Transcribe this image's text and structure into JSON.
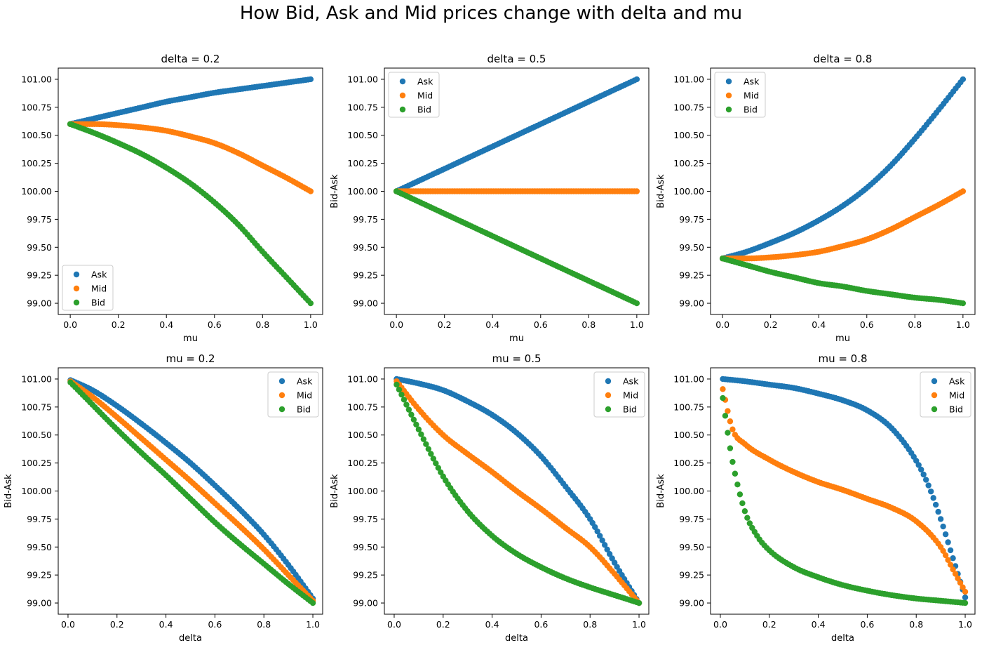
{
  "figure": {
    "title": "How Bid, Ask and Mid prices change with delta and mu",
    "colors": {
      "Ask": "#1f77b4",
      "Mid": "#ff7f0e",
      "Bid": "#2ca02c"
    }
  },
  "chart_data": [
    {
      "type": "scatter",
      "title": "delta = 0.2",
      "xlabel": "mu",
      "ylabel": "",
      "xlim": [
        -0.05,
        1.05
      ],
      "ylim": [
        98.9,
        101.1
      ],
      "xticks": [
        0.0,
        0.2,
        0.4,
        0.6,
        0.8,
        1.0
      ],
      "xtick_labels": [
        "0.0",
        "0.2",
        "0.4",
        "0.6",
        "0.8",
        "1.0"
      ],
      "yticks": [
        99.0,
        99.25,
        99.5,
        99.75,
        100.0,
        100.25,
        100.5,
        100.75,
        101.0
      ],
      "ytick_labels": [
        "99.00",
        "99.25",
        "99.50",
        "99.75",
        "100.00",
        "100.25",
        "100.50",
        "100.75",
        "101.00"
      ],
      "legend": "lower-left",
      "grid": false,
      "series": [
        {
          "name": "Ask",
          "x": [
            0.0,
            0.1,
            0.2,
            0.3,
            0.4,
            0.5,
            0.6,
            0.7,
            0.8,
            0.9,
            1.0
          ],
          "y": [
            100.6,
            100.65,
            100.7,
            100.75,
            100.8,
            100.84,
            100.88,
            100.91,
            100.94,
            100.97,
            101.0
          ]
        },
        {
          "name": "Mid",
          "x": [
            0.0,
            0.1,
            0.2,
            0.3,
            0.4,
            0.5,
            0.6,
            0.7,
            0.8,
            0.9,
            1.0
          ],
          "y": [
            100.6,
            100.6,
            100.59,
            100.57,
            100.54,
            100.49,
            100.43,
            100.34,
            100.23,
            100.12,
            100.0
          ]
        },
        {
          "name": "Bid",
          "x": [
            0.0,
            0.1,
            0.2,
            0.3,
            0.4,
            0.5,
            0.6,
            0.7,
            0.8,
            0.9,
            1.0
          ],
          "y": [
            100.6,
            100.52,
            100.43,
            100.33,
            100.21,
            100.07,
            99.9,
            99.7,
            99.46,
            99.23,
            99.0
          ]
        }
      ]
    },
    {
      "type": "scatter",
      "title": "delta = 0.5",
      "xlabel": "mu",
      "ylabel": "Bid-Ask",
      "xlim": [
        -0.05,
        1.05
      ],
      "ylim": [
        98.9,
        101.1
      ],
      "xticks": [
        0.0,
        0.2,
        0.4,
        0.6,
        0.8,
        1.0
      ],
      "xtick_labels": [
        "0.0",
        "0.2",
        "0.4",
        "0.6",
        "0.8",
        "1.0"
      ],
      "yticks": [
        99.0,
        99.25,
        99.5,
        99.75,
        100.0,
        100.25,
        100.5,
        100.75,
        101.0
      ],
      "ytick_labels": [
        "99.00",
        "99.25",
        "99.50",
        "99.75",
        "100.00",
        "100.25",
        "100.50",
        "100.75",
        "101.00"
      ],
      "legend": "upper-left",
      "grid": false,
      "series": [
        {
          "name": "Ask",
          "x": [
            0.0,
            0.1,
            0.2,
            0.3,
            0.4,
            0.5,
            0.6,
            0.7,
            0.8,
            0.9,
            1.0
          ],
          "y": [
            100.0,
            100.1,
            100.2,
            100.3,
            100.4,
            100.5,
            100.6,
            100.7,
            100.8,
            100.9,
            101.0
          ]
        },
        {
          "name": "Mid",
          "x": [
            0.0,
            0.1,
            0.2,
            0.3,
            0.4,
            0.5,
            0.6,
            0.7,
            0.8,
            0.9,
            1.0
          ],
          "y": [
            100.0,
            100.0,
            100.0,
            100.0,
            100.0,
            100.0,
            100.0,
            100.0,
            100.0,
            100.0,
            100.0
          ]
        },
        {
          "name": "Bid",
          "x": [
            0.0,
            0.1,
            0.2,
            0.3,
            0.4,
            0.5,
            0.6,
            0.7,
            0.8,
            0.9,
            1.0
          ],
          "y": [
            100.0,
            99.9,
            99.8,
            99.7,
            99.6,
            99.5,
            99.4,
            99.3,
            99.2,
            99.1,
            99.0
          ]
        }
      ]
    },
    {
      "type": "scatter",
      "title": "delta = 0.8",
      "xlabel": "mu",
      "ylabel": "Bid-Ask",
      "xlim": [
        -0.05,
        1.05
      ],
      "ylim": [
        98.9,
        101.1
      ],
      "xticks": [
        0.0,
        0.2,
        0.4,
        0.6,
        0.8,
        1.0
      ],
      "xtick_labels": [
        "0.0",
        "0.2",
        "0.4",
        "0.6",
        "0.8",
        "1.0"
      ],
      "yticks": [
        99.0,
        99.25,
        99.5,
        99.75,
        100.0,
        100.25,
        100.5,
        100.75,
        101.0
      ],
      "ytick_labels": [
        "99.00",
        "99.25",
        "99.50",
        "99.75",
        "100.00",
        "100.25",
        "100.50",
        "100.75",
        "101.00"
      ],
      "legend": "upper-left",
      "grid": false,
      "series": [
        {
          "name": "Ask",
          "x": [
            0.0,
            0.1,
            0.2,
            0.3,
            0.4,
            0.5,
            0.6,
            0.7,
            0.8,
            0.9,
            1.0
          ],
          "y": [
            99.4,
            99.46,
            99.54,
            99.63,
            99.74,
            99.87,
            100.03,
            100.23,
            100.47,
            100.73,
            101.0
          ]
        },
        {
          "name": "Mid",
          "x": [
            0.0,
            0.1,
            0.2,
            0.3,
            0.4,
            0.5,
            0.6,
            0.7,
            0.8,
            0.9,
            1.0
          ],
          "y": [
            99.4,
            99.4,
            99.41,
            99.43,
            99.46,
            99.51,
            99.57,
            99.66,
            99.77,
            99.88,
            100.0
          ]
        },
        {
          "name": "Bid",
          "x": [
            0.0,
            0.1,
            0.2,
            0.3,
            0.4,
            0.5,
            0.6,
            0.7,
            0.8,
            0.9,
            1.0
          ],
          "y": [
            99.4,
            99.34,
            99.28,
            99.23,
            99.18,
            99.15,
            99.11,
            99.08,
            99.05,
            99.03,
            99.0
          ]
        }
      ]
    },
    {
      "type": "scatter",
      "title": "mu = 0.2",
      "xlabel": "delta",
      "ylabel": "Bid-Ask",
      "xlim": [
        -0.04,
        1.04
      ],
      "ylim": [
        98.9,
        101.1
      ],
      "xticks": [
        0.0,
        0.2,
        0.4,
        0.6,
        0.8,
        1.0
      ],
      "xtick_labels": [
        "0.0",
        "0.2",
        "0.4",
        "0.6",
        "0.8",
        "1.0"
      ],
      "yticks": [
        99.0,
        99.25,
        99.5,
        99.75,
        100.0,
        100.25,
        100.5,
        100.75,
        101.0
      ],
      "ytick_labels": [
        "99.00",
        "99.25",
        "99.50",
        "99.75",
        "100.00",
        "100.25",
        "100.50",
        "100.75",
        "101.00"
      ],
      "legend": "upper-right",
      "grid": false,
      "series": [
        {
          "name": "Ask",
          "x": [
            0.01,
            0.1,
            0.2,
            0.3,
            0.4,
            0.5,
            0.6,
            0.7,
            0.8,
            0.9,
            1.0
          ],
          "y": [
            100.99,
            100.9,
            100.76,
            100.6,
            100.43,
            100.25,
            100.05,
            99.84,
            99.61,
            99.34,
            99.04
          ]
        },
        {
          "name": "Mid",
          "x": [
            0.01,
            0.1,
            0.2,
            0.3,
            0.4,
            0.5,
            0.6,
            0.7,
            0.8,
            0.9,
            1.0
          ],
          "y": [
            100.98,
            100.84,
            100.66,
            100.47,
            100.28,
            100.09,
            99.89,
            99.69,
            99.48,
            99.25,
            99.02
          ]
        },
        {
          "name": "Bid",
          "x": [
            0.01,
            0.1,
            0.2,
            0.3,
            0.4,
            0.5,
            0.6,
            0.7,
            0.8,
            0.9,
            1.0
          ],
          "y": [
            100.97,
            100.77,
            100.55,
            100.34,
            100.14,
            99.93,
            99.72,
            99.53,
            99.35,
            99.17,
            99.0
          ]
        }
      ]
    },
    {
      "type": "scatter",
      "title": "mu = 0.5",
      "xlabel": "delta",
      "ylabel": "Bid-Ask",
      "xlim": [
        -0.04,
        1.04
      ],
      "ylim": [
        98.9,
        101.1
      ],
      "xticks": [
        0.0,
        0.2,
        0.4,
        0.6,
        0.8,
        1.0
      ],
      "xtick_labels": [
        "0.0",
        "0.2",
        "0.4",
        "0.6",
        "0.8",
        "1.0"
      ],
      "yticks": [
        99.0,
        99.25,
        99.5,
        99.75,
        100.0,
        100.25,
        100.5,
        100.75,
        101.0
      ],
      "ytick_labels": [
        "99.00",
        "99.25",
        "99.50",
        "99.75",
        "100.00",
        "100.25",
        "100.50",
        "100.75",
        "101.00"
      ],
      "legend": "upper-right",
      "grid": false,
      "series": [
        {
          "name": "Ask",
          "x": [
            0.01,
            0.1,
            0.2,
            0.3,
            0.4,
            0.5,
            0.6,
            0.7,
            0.8,
            0.9,
            1.0
          ],
          "y": [
            101.0,
            100.96,
            100.9,
            100.8,
            100.68,
            100.52,
            100.31,
            100.04,
            99.75,
            99.36,
            99.0
          ]
        },
        {
          "name": "Mid",
          "x": [
            0.01,
            0.1,
            0.2,
            0.3,
            0.4,
            0.5,
            0.6,
            0.7,
            0.8,
            0.9,
            1.0
          ],
          "y": [
            100.98,
            100.73,
            100.5,
            100.33,
            100.17,
            100.0,
            99.84,
            99.67,
            99.5,
            99.26,
            99.0
          ]
        },
        {
          "name": "Bid",
          "x": [
            0.01,
            0.1,
            0.2,
            0.3,
            0.4,
            0.5,
            0.6,
            0.7,
            0.8,
            0.9,
            1.0
          ],
          "y": [
            100.95,
            100.55,
            100.13,
            99.82,
            99.6,
            99.44,
            99.32,
            99.22,
            99.14,
            99.07,
            99.0
          ]
        }
      ]
    },
    {
      "type": "scatter",
      "title": "mu = 0.8",
      "xlabel": "delta",
      "ylabel": "Bid-Ask",
      "xlim": [
        -0.04,
        1.04
      ],
      "ylim": [
        98.9,
        101.1
      ],
      "xticks": [
        0.0,
        0.2,
        0.4,
        0.6,
        0.8,
        1.0
      ],
      "xtick_labels": [
        "0.0",
        "0.2",
        "0.4",
        "0.6",
        "0.8",
        "1.0"
      ],
      "yticks": [
        99.0,
        99.25,
        99.5,
        99.75,
        100.0,
        100.25,
        100.5,
        100.75,
        101.0
      ],
      "ytick_labels": [
        "99.00",
        "99.25",
        "99.50",
        "99.75",
        "100.00",
        "100.25",
        "100.50",
        "100.75",
        "101.00"
      ],
      "legend": "upper-right",
      "grid": false,
      "series": [
        {
          "name": "Ask",
          "x": [
            0.01,
            0.1,
            0.2,
            0.3,
            0.4,
            0.5,
            0.6,
            0.7,
            0.8,
            0.85,
            0.9,
            0.95,
            1.0
          ],
          "y": [
            101.0,
            100.98,
            100.95,
            100.92,
            100.87,
            100.81,
            100.72,
            100.56,
            100.27,
            100.05,
            99.75,
            99.4,
            99.05
          ]
        },
        {
          "name": "Mid",
          "x": [
            0.01,
            0.05,
            0.1,
            0.2,
            0.3,
            0.4,
            0.5,
            0.6,
            0.7,
            0.8,
            0.9,
            0.95,
            1.0
          ],
          "y": [
            100.91,
            100.55,
            100.42,
            100.28,
            100.17,
            100.08,
            100.01,
            99.93,
            99.85,
            99.73,
            99.5,
            99.3,
            99.1
          ]
        },
        {
          "name": "Bid",
          "x": [
            0.01,
            0.03,
            0.05,
            0.1,
            0.15,
            0.2,
            0.3,
            0.4,
            0.5,
            0.6,
            0.7,
            0.8,
            0.9,
            1.0
          ],
          "y": [
            100.83,
            100.52,
            100.26,
            99.82,
            99.6,
            99.47,
            99.32,
            99.23,
            99.16,
            99.11,
            99.07,
            99.04,
            99.02,
            99.0
          ]
        }
      ]
    }
  ]
}
